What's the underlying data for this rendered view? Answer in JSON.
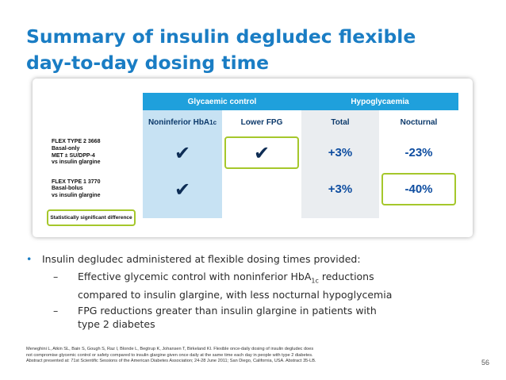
{
  "title": {
    "line1": "Summary of insulin degludec flexible",
    "line2": "day-to-day dosing time"
  },
  "table": {
    "group_headers": {
      "glycaemic": "Glycaemic control",
      "hypo": "Hypoglycaemia"
    },
    "column_headers": {
      "noninferior_prefix": "Noninferior HbA",
      "noninferior_sub": "1c",
      "lower_fpg": "Lower FPG",
      "total": "Total",
      "nocturnal": "Nocturnal"
    },
    "rows": [
      {
        "label_lines": [
          "FLEX TYPE 2 3668",
          "Basal-only",
          "MET ± SU/DPP-4",
          "vs insulin glargine"
        ],
        "noninferior": "✔",
        "lower_fpg": "✔",
        "total": "+3%",
        "nocturnal": "-23%"
      },
      {
        "label_lines": [
          "FLEX TYPE 1 3770",
          "Basal-bolus",
          "vs insulin glargine"
        ],
        "noninferior": "✔",
        "lower_fpg": "",
        "total": "+3%",
        "nocturnal": "-40%"
      }
    ],
    "legend": "Statistically significant difference"
  },
  "bullets": {
    "main": "Insulin degludec administered at flexible dosing times provided:",
    "sub1_a": "Effective glycemic control with noninferior HbA",
    "sub1_sub": "1c",
    "sub1_b": " reductions",
    "sub1_c": "compared to insulin glargine, with less nocturnal hypoglycemia",
    "sub2_a": "FPG reductions greater than insulin glargine in patients with",
    "sub2_b": "type 2 diabetes"
  },
  "references": {
    "line1": "Meneghini L, Atkin SL, Bain S, Gough S, Raz I, Blonde L, Begtrup K, Johansen T, Birkeland KI. Flexible once-daily dosing of insulin degludec does",
    "line2": "not compromise glycemic control or safety compared to insulin glargine given once daily at the same time each day in people with type 2 diabetes.",
    "line3": "Abstract presented at: 71st Scientific Sessions of the American Diabetes Association; 24-28 June 2011; San Diego, California, USA. Abstract 35-LB."
  },
  "page_number": "56",
  "colors": {
    "title_blue": "#1a7dc4",
    "header_blue": "#1fa0dc",
    "cell_blue": "#c7e2f3",
    "cell_grey": "#eaedf0",
    "highlight_green": "#a5c72b"
  }
}
